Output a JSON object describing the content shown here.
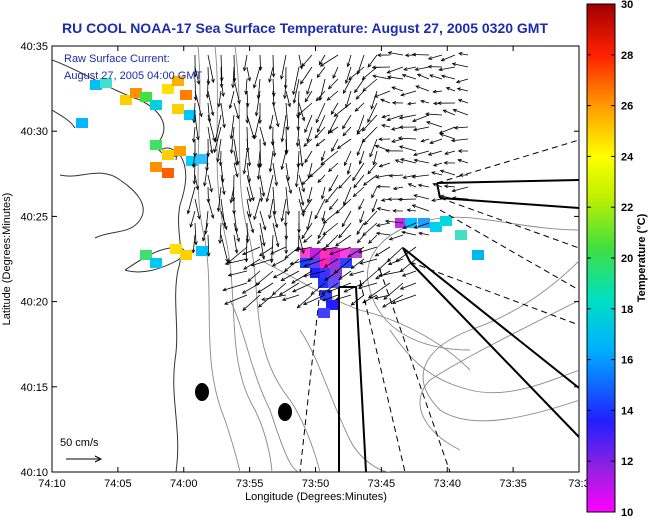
{
  "title": "RU COOL  NOAA-17  Sea Surface Temperature:  August 27, 2005 0320 GMT",
  "annotation": {
    "line1": "Raw Surface Current:",
    "line2": "August 27, 2005 04:00 GMT"
  },
  "scale_label": "50 cm/s",
  "x_axis": {
    "label": "Longitude (Degrees:Minutes)",
    "ticks": [
      "74:10",
      "74:05",
      "74:00",
      "73:55",
      "73:50",
      "73:45",
      "73:40",
      "73:35",
      "73:3"
    ]
  },
  "y_axis": {
    "label": "Latitude (Degrees:Minutes)",
    "ticks": [
      "40:35",
      "40:30",
      "40:25",
      "40:20",
      "40:15",
      "40:10"
    ]
  },
  "colorbar": {
    "label": "Temperature (°C)",
    "ticks": [
      "30",
      "28",
      "26",
      "24",
      "22",
      "20",
      "18",
      "16",
      "14",
      "12",
      "10"
    ],
    "min": 10,
    "max": 30
  },
  "colors": {
    "title": "#1c2bb0",
    "contour": "#888888",
    "coast": "#333333"
  }
}
